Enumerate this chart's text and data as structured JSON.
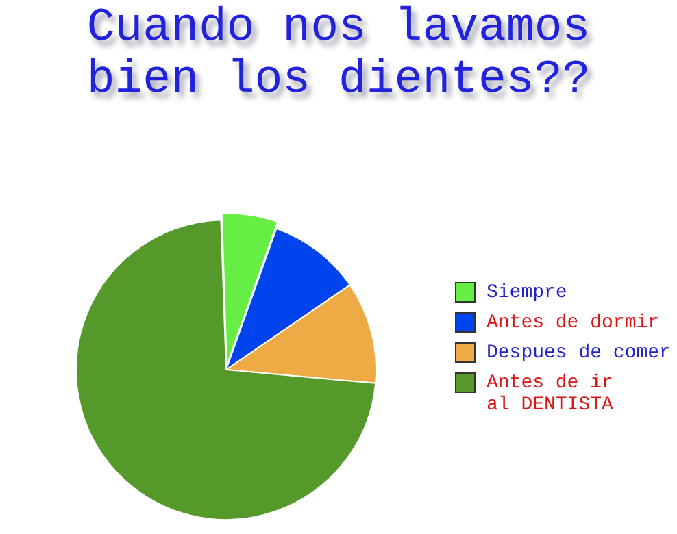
{
  "chart_data": {
    "type": "pie",
    "title": "Cuando nos lavamos\nbien los dientes??",
    "categories": [
      "Siempre",
      "Antes de dormir",
      "Despues de comer",
      "Antes de ir\nal DENTISTA"
    ],
    "values": [
      6,
      10,
      11,
      73
    ],
    "colors": [
      "#66ee44",
      "#0044ee",
      "#eeaa44",
      "#55992a"
    ],
    "legend": "right"
  }
}
